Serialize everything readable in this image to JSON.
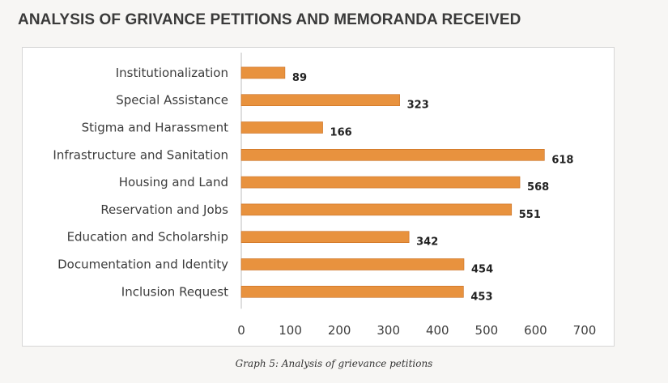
{
  "title": "ANALYSIS OF GRIVANCE PETITIONS AND MEMORANDA RECEIVED",
  "caption": "Graph 5: Analysis of grievance petitions",
  "colors": {
    "bar": "#e8923e",
    "bar_edge": "#c96f22",
    "axis": "#bdbdbd"
  },
  "chart_data": {
    "type": "bar",
    "orientation": "horizontal",
    "title": "ANALYSIS OF GRIVANCE PETITIONS AND MEMORANDA RECEIVED",
    "xlabel": "",
    "ylabel": "",
    "xlim": [
      0,
      700
    ],
    "xticks": [
      0,
      100,
      200,
      300,
      400,
      500,
      600,
      700
    ],
    "grid": false,
    "legend": "none",
    "categories": [
      "Institutionalization",
      "Special Assistance",
      "Stigma and Harassment",
      "Infrastructure and Sanitation",
      "Housing and Land",
      "Reservation and Jobs",
      "Education and Scholarship",
      "Documentation and Identity",
      "Inclusion Request"
    ],
    "values": [
      89,
      323,
      166,
      618,
      568,
      551,
      342,
      454,
      453
    ]
  }
}
